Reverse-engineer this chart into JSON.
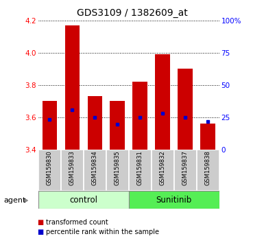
{
  "title": "GDS3109 / 1382609_at",
  "samples": [
    "GSM159830",
    "GSM159833",
    "GSM159834",
    "GSM159835",
    "GSM159831",
    "GSM159832",
    "GSM159837",
    "GSM159838"
  ],
  "bar_tops": [
    3.7,
    4.17,
    3.73,
    3.7,
    3.82,
    3.99,
    3.9,
    3.56
  ],
  "bar_bottoms": [
    3.4,
    3.4,
    3.4,
    3.4,
    3.4,
    3.4,
    3.4,
    3.4
  ],
  "percentile_values": [
    3.585,
    3.645,
    3.6,
    3.555,
    3.6,
    3.625,
    3.6,
    3.575
  ],
  "groups": [
    {
      "label": "control",
      "indices": [
        0,
        1,
        2,
        3
      ],
      "color": "#ccffcc"
    },
    {
      "label": "Sunitinib",
      "indices": [
        4,
        5,
        6,
        7
      ],
      "color": "#55ee55"
    }
  ],
  "bar_color": "#cc0000",
  "percentile_color": "#0000cc",
  "ylim_left": [
    3.4,
    4.2
  ],
  "ylim_right": [
    0,
    100
  ],
  "yticks_left": [
    3.4,
    3.6,
    3.8,
    4.0,
    4.2
  ],
  "yticks_right": [
    0,
    25,
    50,
    75,
    100
  ],
  "ytick_labels_right": [
    "0",
    "25",
    "50",
    "75",
    "100%"
  ],
  "sample_bg_color": "#cccccc",
  "bar_width": 0.65,
  "legend_items": [
    {
      "color": "#cc0000",
      "label": "transformed count"
    },
    {
      "color": "#0000cc",
      "label": "percentile rank within the sample"
    }
  ]
}
